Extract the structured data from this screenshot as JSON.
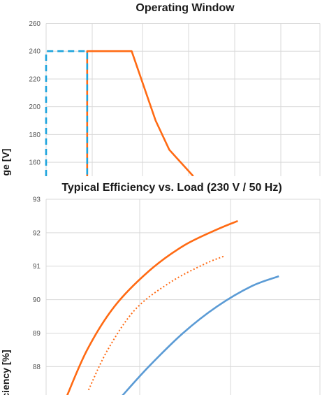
{
  "colors": {
    "orange": "#FF6A13",
    "blue": "#1CA3DC",
    "steel_blue": "#5B9BD5",
    "grid": "#D9D9D9"
  },
  "chart_data": [
    {
      "type": "line",
      "title": "Operating Window",
      "ylabel": "ge [V]",
      "xlabel": "",
      "yticks": [
        "260",
        "240",
        "220",
        "200",
        "180",
        "160"
      ],
      "ylim": [
        150,
        260
      ],
      "xlim": [
        0,
        8
      ],
      "grid": true,
      "series": [
        {
          "color": "#FF6A13",
          "style": "solid",
          "x": [
            1.2,
            1.2,
            2.5,
            3.2,
            3.6,
            4.3
          ],
          "y": [
            150,
            240,
            240,
            190,
            169,
            150
          ]
        },
        {
          "color": "#1CA3DC",
          "style": "dashed",
          "x": [
            0,
            0,
            1.2,
            1.2
          ],
          "y": [
            150,
            240,
            240,
            150
          ]
        }
      ]
    },
    {
      "type": "line",
      "title": "Typical Efficiency vs. Load (230 V / 50 Hz)",
      "ylabel": "ciency [%]",
      "xlabel": "",
      "yticks": [
        "93",
        "92",
        "91",
        "90",
        "89",
        "88"
      ],
      "ylim": [
        87.15,
        93
      ],
      "xlim": [
        0,
        4
      ],
      "grid": true,
      "series": [
        {
          "color": "#FF6A13",
          "style": "solid",
          "x": [
            0.3,
            0.6,
            1.0,
            1.5,
            2.0,
            2.5,
            2.8
          ],
          "y": [
            87.1,
            88.5,
            89.8,
            90.85,
            91.6,
            92.1,
            92.35
          ]
        },
        {
          "color": "#FF6A13",
          "style": "dotted",
          "x": [
            0.62,
            0.9,
            1.3,
            1.8,
            2.3,
            2.6
          ],
          "y": [
            87.3,
            88.5,
            89.7,
            90.5,
            91.05,
            91.3
          ]
        },
        {
          "color": "#5B9BD5",
          "style": "solid",
          "x": [
            1.1,
            1.5,
            2.0,
            2.5,
            3.0,
            3.4
          ],
          "y": [
            87.1,
            88.0,
            89.0,
            89.8,
            90.4,
            90.7
          ]
        }
      ]
    }
  ]
}
